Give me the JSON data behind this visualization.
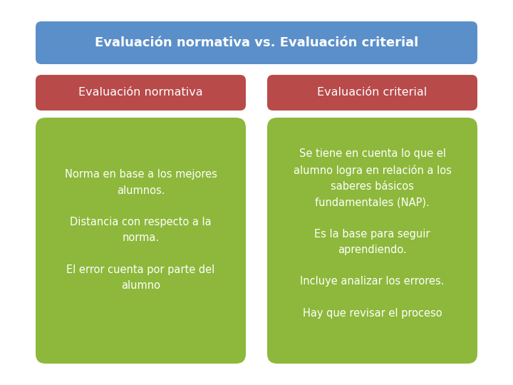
{
  "title": "Evaluación normativa vs. Evaluación criterial",
  "title_bg": "#5b8fc9",
  "title_color": "#ffffff",
  "title_fontsize": 13,
  "left_header": "Evaluación normativa",
  "right_header": "Evaluación criterial",
  "header_bg": "#b94a4a",
  "header_color": "#ffffff",
  "header_fontsize": 11.5,
  "content_bg": "#8db83b",
  "content_color": "#ffffff",
  "content_fontsize": 10.5,
  "left_items": [
    "Norma en base a los mejores\nalumnos.",
    "Distancia con respecto a la\nnorma.",
    "El error cuenta por parte del\nalumno"
  ],
  "right_items": [
    "Se tiene en cuenta lo que el\nalumno logra en relación a los\nsaberes básicos\nfundamentales (NAP).",
    "Es la base para seguir\naprendiendo.",
    "Incluye analizar los errores.",
    "Hay que revisar el proceso"
  ],
  "bg_color": "#ffffff",
  "fig_bg": "#ffffff"
}
